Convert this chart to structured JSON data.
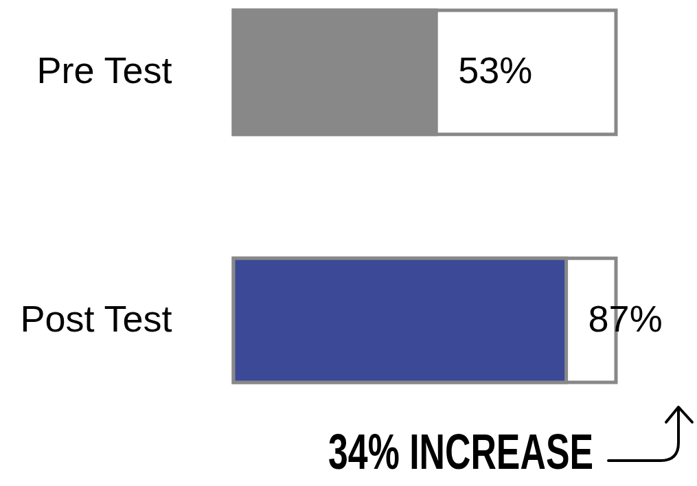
{
  "chart_data": {
    "type": "bar",
    "orientation": "horizontal",
    "categories": [
      "Pre Test",
      "Post Test"
    ],
    "values": [
      53,
      87
    ],
    "colors": [
      "#888888",
      "#3c4996"
    ],
    "value_labels": [
      "53%",
      "87%"
    ],
    "xlim": [
      0,
      100
    ],
    "tick_labels": "y",
    "grid": false,
    "annotations": [
      "34% INCREASE"
    ]
  }
}
